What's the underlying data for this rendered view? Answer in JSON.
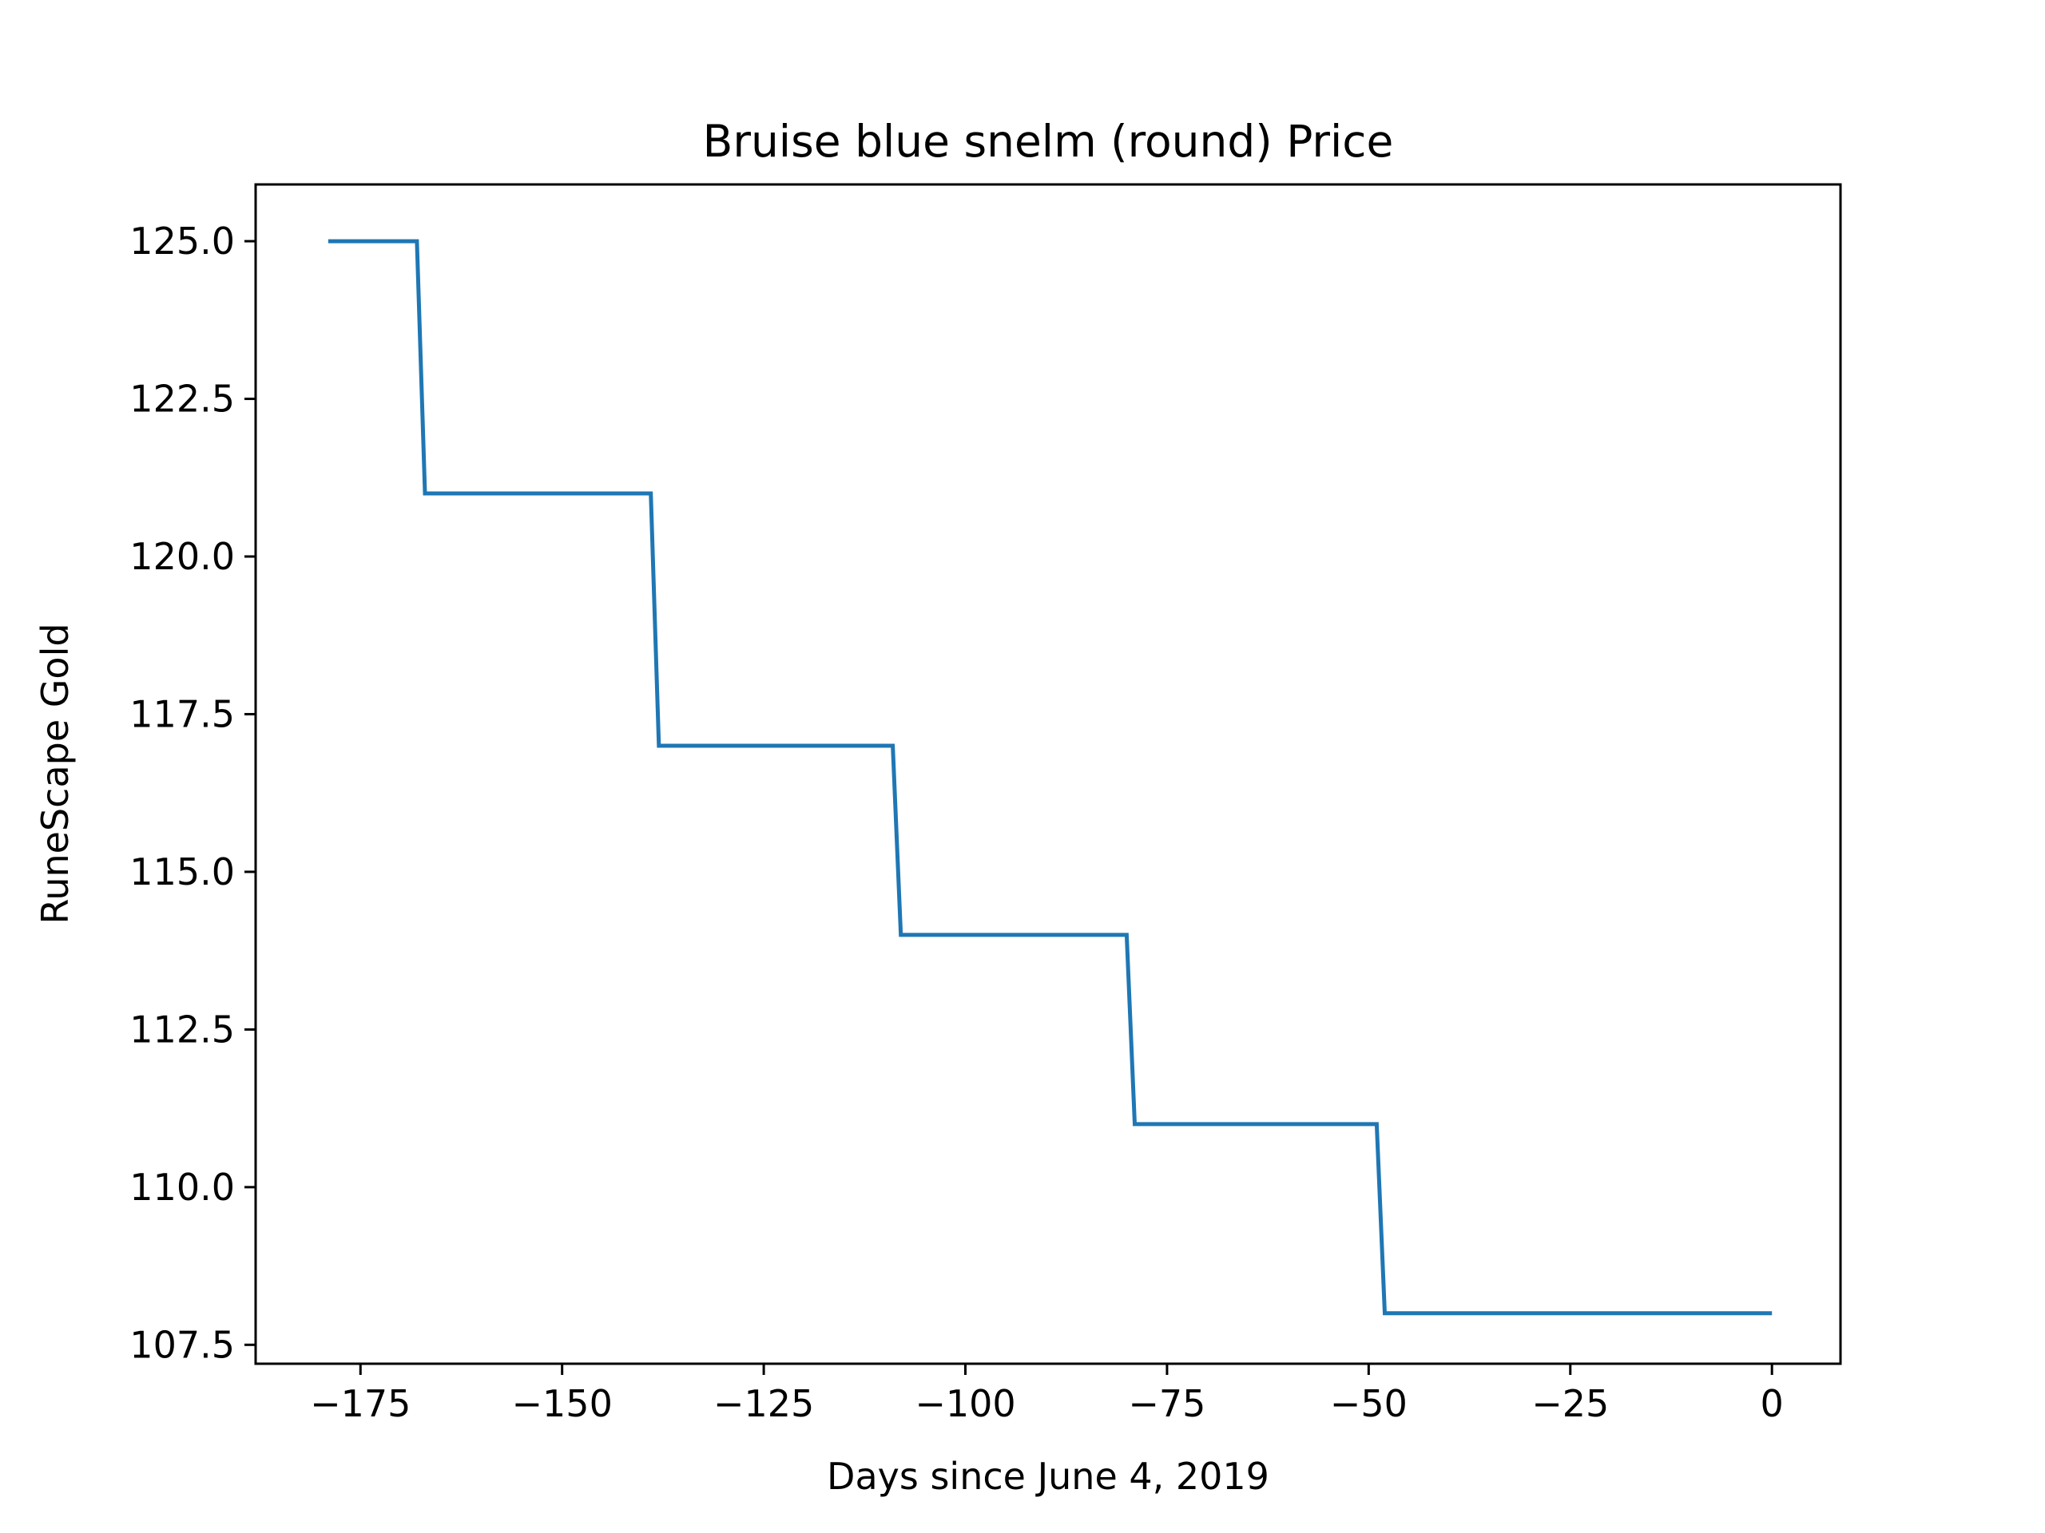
{
  "chart_data": {
    "type": "line",
    "title": "Bruise blue snelm (round) Price",
    "xlabel": "Days since June 4, 2019",
    "ylabel": "RuneScape Gold",
    "xlim": [
      -188,
      8.5
    ],
    "ylim": [
      107.2,
      125.9
    ],
    "xticks": [
      -175,
      -150,
      -125,
      -100,
      -75,
      -50,
      -25,
      0
    ],
    "xtick_labels": [
      "−175",
      "−150",
      "−125",
      "−100",
      "−75",
      "−50",
      "−25",
      "0"
    ],
    "yticks": [
      107.5,
      110.0,
      112.5,
      115.0,
      117.5,
      120.0,
      122.5,
      125.0
    ],
    "ytick_labels": [
      "107.5",
      "110.0",
      "112.5",
      "115.0",
      "117.5",
      "120.0",
      "122.5",
      "125.0"
    ],
    "grid": false,
    "series": [
      {
        "color": "#1f77b4",
        "x": [
          -179,
          -168,
          -167,
          -139,
          -138,
          -109,
          -108,
          -80,
          -79,
          -49,
          -48,
          0
        ],
        "y": [
          125,
          125,
          121,
          121,
          117,
          117,
          114,
          114,
          111,
          111,
          108,
          108
        ]
      }
    ]
  }
}
